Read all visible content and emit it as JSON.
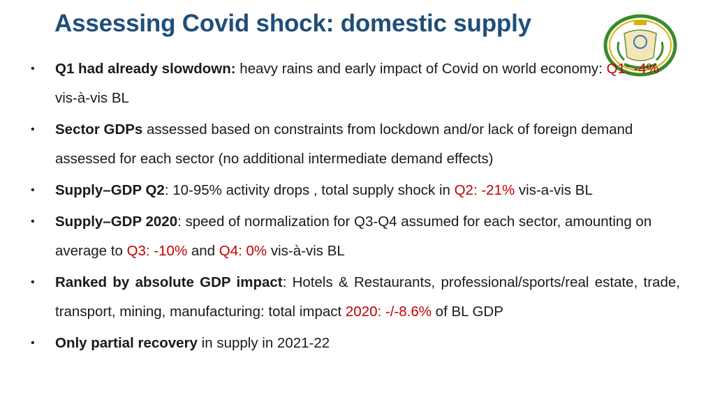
{
  "title": "Assessing Covid shock: domestic supply",
  "bullet_marker": "•",
  "colors": {
    "title": "#1f4e79",
    "highlight": "#c00000"
  },
  "bullets": [
    {
      "bold": "Q1 had already slowdown:",
      "t1": " heavy rains and early impact of Covid on world economy: ",
      "r1": "Q1: -4%",
      "t2": " vis-à-vis BL"
    },
    {
      "bold": "Sector GDPs",
      "t1": " assessed based on constraints from lockdown and/or lack of foreign demand assessed for each sector (no additional intermediate demand effects)"
    },
    {
      "bold": "Supply–GDP Q2",
      "t1": ": 10-95% activity drops , total supply shock in ",
      "r1": "Q2: -21%",
      "t2": " vis-a-vis BL"
    },
    {
      "bold": "Supply–GDP 2020",
      "t1": ": speed of normalization for Q3-Q4 assumed for each sector, amounting on average to ",
      "r1": "Q3: -10%",
      "t2": " and ",
      "r2": "Q4: 0%",
      "t3": " vis-à-vis BL"
    },
    {
      "bold": "Ranked by absolute GDP impact",
      "t1": ": Hotels & Restaurants, professional/sports/real estate, trade, transport, mining, manufacturing: total impact ",
      "r1": "2020: -/-8.6%",
      "t2": " of BL GDP"
    },
    {
      "bold": "Only partial recovery",
      "t1": " in supply in 2021-22"
    }
  ]
}
